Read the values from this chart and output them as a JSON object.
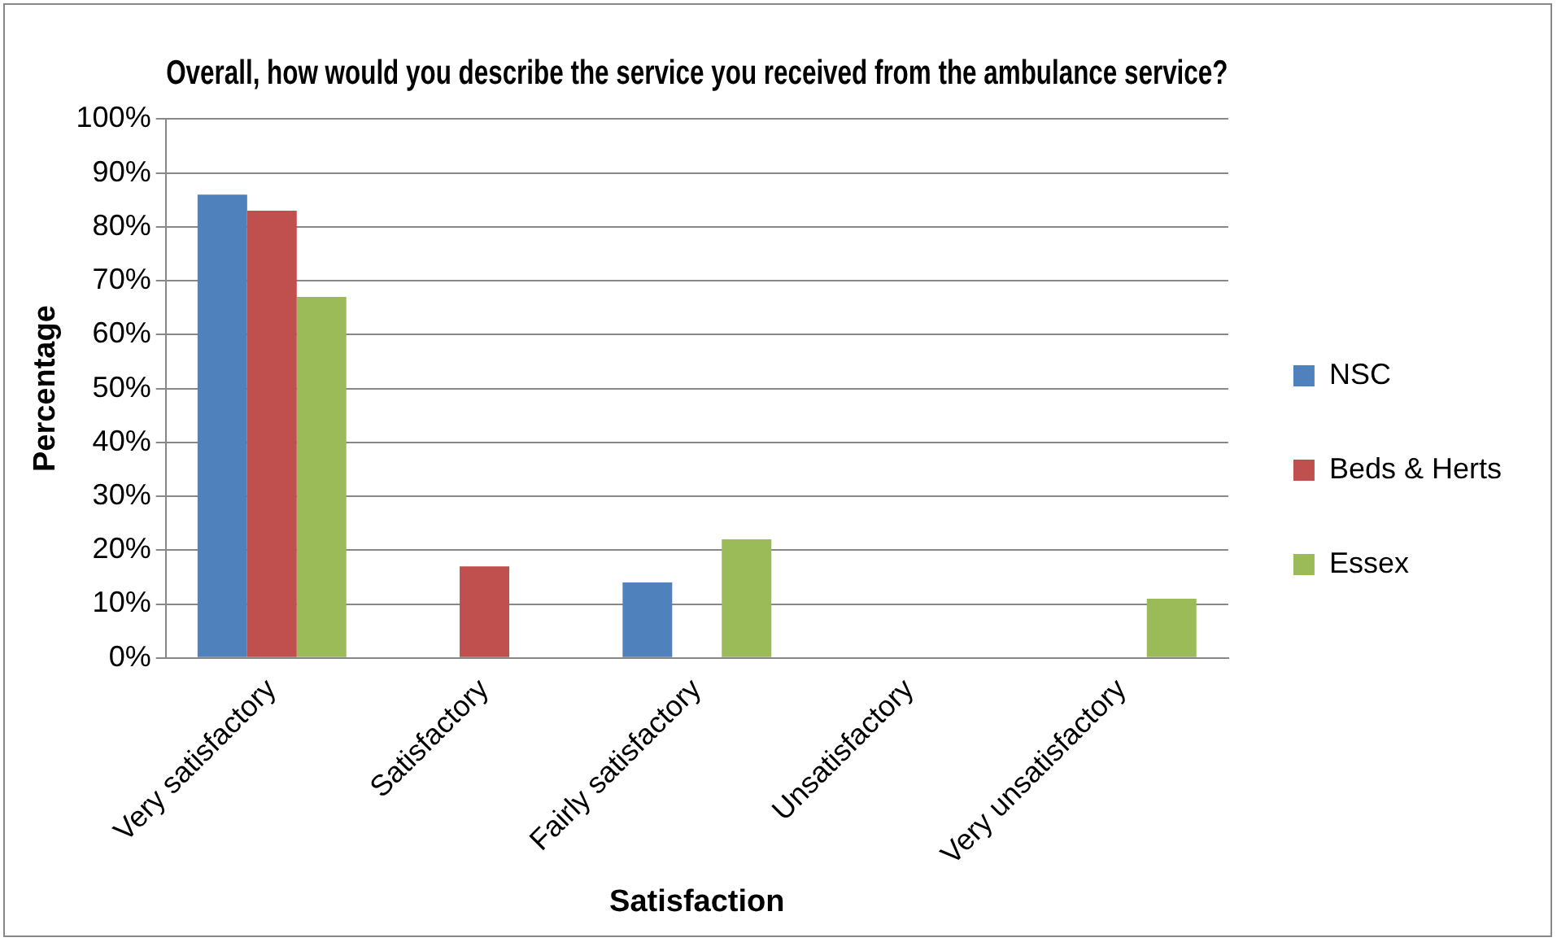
{
  "chart_data": {
    "type": "bar",
    "title": "Overall, how would you describe the service you received from the ambulance service?",
    "xlabel": "Satisfaction",
    "ylabel": "Percentage",
    "categories": [
      "Very satisfactory",
      "Satisfactory",
      "Fairly satisfactory",
      "Unsatisfactory",
      "Very unsatisfactory"
    ],
    "series": [
      {
        "name": "NSC",
        "color": "#4f81bd",
        "values": [
          86,
          0,
          14,
          0,
          0
        ]
      },
      {
        "name": "Beds & Herts",
        "color": "#c0504d",
        "values": [
          83,
          17,
          0,
          0,
          0
        ]
      },
      {
        "name": "Essex",
        "color": "#9bbb59",
        "values": [
          67,
          0,
          22,
          0,
          11
        ]
      }
    ],
    "ylim": [
      0,
      100
    ],
    "yticks": [
      {
        "value": 0,
        "label": "0%"
      },
      {
        "value": 10,
        "label": "10%"
      },
      {
        "value": 20,
        "label": "20%"
      },
      {
        "value": 30,
        "label": "30%"
      },
      {
        "value": 40,
        "label": "40%"
      },
      {
        "value": 50,
        "label": "50%"
      },
      {
        "value": 60,
        "label": "60%"
      },
      {
        "value": 70,
        "label": "70%"
      },
      {
        "value": 80,
        "label": "80%"
      },
      {
        "value": 90,
        "label": "90%"
      },
      {
        "value": 100,
        "label": "100%"
      }
    ],
    "grid": "y",
    "legend": "right"
  }
}
